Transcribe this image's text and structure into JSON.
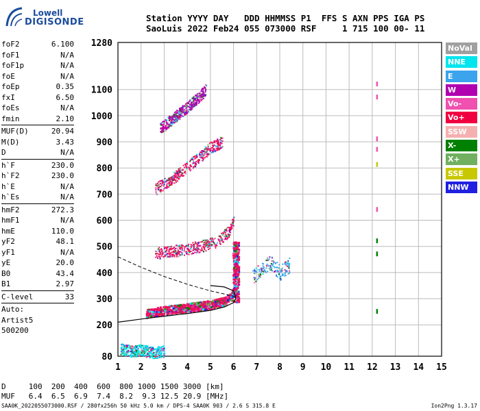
{
  "logo": {
    "line1": "Lowell",
    "line2": "DIGISONDE"
  },
  "header": {
    "line1": "Station YYYY DAY   DDD HHMMSS P1  FFS S AXN PPS IGA PS",
    "line2": "SaoLuis 2022 Feb24 055 073000 RSF     1 715 100 00- 11"
  },
  "params": {
    "group1": [
      {
        "label": "foF2",
        "value": "6.100"
      },
      {
        "label": "foF1",
        "value": "N/A"
      },
      {
        "label": "foF1p",
        "value": "N/A"
      },
      {
        "label": "foE",
        "value": "N/A"
      },
      {
        "label": "foEp",
        "value": "0.35"
      },
      {
        "label": "fxI",
        "value": "6.50"
      },
      {
        "label": "foEs",
        "value": "N/A"
      },
      {
        "label": "fmin",
        "value": "2.10"
      }
    ],
    "group2": [
      {
        "label": "MUF(D)",
        "value": "20.94"
      },
      {
        "label": "M(D)",
        "value": "3.43"
      },
      {
        "label": "D",
        "value": "N/A"
      }
    ],
    "group3": [
      {
        "label": "h`F",
        "value": "230.0"
      },
      {
        "label": "h`F2",
        "value": "230.0"
      },
      {
        "label": "h`E",
        "value": "N/A"
      },
      {
        "label": "h`Es",
        "value": "N/A"
      }
    ],
    "group4": [
      {
        "label": "hmF2",
        "value": "272.3"
      },
      {
        "label": "hmF1",
        "value": "N/A"
      },
      {
        "label": "hmE",
        "value": "110.0"
      },
      {
        "label": "yF2",
        "value": "48.1"
      },
      {
        "label": "yF1",
        "value": "N/A"
      },
      {
        "label": "yE",
        "value": "20.0"
      },
      {
        "label": "B0",
        "value": "43.4"
      },
      {
        "label": "B1",
        "value": "2.97"
      }
    ],
    "group5": [
      {
        "label": "C-level",
        "value": "33"
      }
    ],
    "group6": [
      "Auto:",
      "Artist5",
      "500200"
    ]
  },
  "legend": [
    {
      "label": "NoVal",
      "color": "#a0a0a0"
    },
    {
      "label": "NNE",
      "color": "#00e5ee"
    },
    {
      "label": "E",
      "color": "#3ba4ec"
    },
    {
      "label": "W",
      "color": "#b000b0"
    },
    {
      "label": "Vo-",
      "color": "#f050b0"
    },
    {
      "label": "Vo+",
      "color": "#f00040"
    },
    {
      "label": "SSW",
      "color": "#f4b0b0"
    },
    {
      "label": "X-",
      "color": "#008000"
    },
    {
      "label": "X+",
      "color": "#70b060"
    },
    {
      "label": "SSE",
      "color": "#c8c800"
    },
    {
      "label": "NNW",
      "color": "#2020e0"
    }
  ],
  "muf_table": {
    "d_line": "D     100  200  400  600  800 1000 1500 3000 [km]",
    "muf_line": "MUF   6.4  6.5  6.9  7.4  8.2  9.3 12.5 20.9 [MHz]"
  },
  "footer": "SAA0K_2022055073000.RSF / 280fx256h 50 kHz 5.0 km / DPS-4 SAA0K 903 / 2.6 S 315.8 E",
  "version": "Ion2Png 1.3.17",
  "chart_data": {
    "type": "scatter",
    "xlabel": "",
    "ylabel": "",
    "xlim": [
      1,
      15
    ],
    "ylim": [
      80,
      1280
    ],
    "x_ticks": [
      1,
      2,
      3,
      4,
      5,
      6,
      7,
      8,
      9,
      10,
      11,
      12,
      13,
      14,
      15
    ],
    "y_ticks": [
      80,
      200,
      300,
      400,
      500,
      600,
      700,
      800,
      900,
      1000,
      1100,
      1280
    ],
    "grid": true,
    "traces": [
      {
        "name": "F-trace",
        "color": "#ee1060",
        "points": [
          [
            2.2,
            245
          ],
          [
            3.0,
            258
          ],
          [
            4.0,
            268
          ],
          [
            5.0,
            280
          ],
          [
            5.6,
            292
          ],
          [
            5.9,
            310
          ],
          [
            6.0,
            360
          ],
          [
            6.1,
            450
          ],
          [
            6.15,
            520
          ]
        ]
      },
      {
        "name": "2F-trace",
        "color": "#ee1060",
        "points": [
          [
            2.6,
            475
          ],
          [
            3.5,
            485
          ],
          [
            4.5,
            500
          ],
          [
            5.3,
            520
          ],
          [
            5.8,
            560
          ],
          [
            6.0,
            600
          ]
        ]
      },
      {
        "name": "3F-trace",
        "color": "#ee1060",
        "points": [
          [
            2.6,
            720
          ],
          [
            3.5,
            770
          ],
          [
            4.2,
            820
          ],
          [
            5.0,
            880
          ],
          [
            5.5,
            900
          ]
        ]
      },
      {
        "name": "4F-trace",
        "color": "#b000b0",
        "points": [
          [
            2.8,
            950
          ],
          [
            3.5,
            1000
          ],
          [
            4.2,
            1050
          ],
          [
            4.8,
            1100
          ]
        ]
      },
      {
        "name": "oblique-cluster",
        "color": "#3ba4ec",
        "points": [
          [
            6.8,
            380
          ],
          [
            7.2,
            420
          ],
          [
            7.6,
            440
          ],
          [
            8.0,
            400
          ],
          [
            8.4,
            430
          ]
        ]
      },
      {
        "name": "low-echoes",
        "color": "#00e5ee",
        "points": [
          [
            1.1,
            110
          ],
          [
            1.6,
            100
          ],
          [
            2.0,
            105
          ],
          [
            2.5,
            95
          ],
          [
            3.0,
            100
          ]
        ]
      }
    ],
    "profile_solid": [
      [
        1.0,
        210
      ],
      [
        2.0,
        222
      ],
      [
        3.0,
        233
      ],
      [
        4.0,
        243
      ],
      [
        5.0,
        255
      ],
      [
        5.6,
        268
      ],
      [
        6.0,
        285
      ],
      [
        6.1,
        300
      ],
      [
        6.0,
        330
      ],
      [
        5.6,
        345
      ],
      [
        5.0,
        350
      ]
    ],
    "profile_dashed": [
      [
        1.0,
        460
      ],
      [
        2.0,
        420
      ],
      [
        3.0,
        385
      ],
      [
        4.0,
        355
      ],
      [
        5.0,
        330
      ],
      [
        6.0,
        310
      ],
      [
        6.1,
        300
      ]
    ],
    "side_markers": [
      {
        "x": 12.2,
        "y": 1120,
        "color": "#f050b0"
      },
      {
        "x": 12.2,
        "y": 1070,
        "color": "#f050b0"
      },
      {
        "x": 12.2,
        "y": 910,
        "color": "#f050b0"
      },
      {
        "x": 12.2,
        "y": 870,
        "color": "#f050b0"
      },
      {
        "x": 12.2,
        "y": 812,
        "color": "#c8c800"
      },
      {
        "x": 12.2,
        "y": 640,
        "color": "#f050b0"
      },
      {
        "x": 12.2,
        "y": 520,
        "color": "#008000"
      },
      {
        "x": 12.2,
        "y": 470,
        "color": "#008000"
      },
      {
        "x": 12.2,
        "y": 250,
        "color": "#008000"
      }
    ]
  }
}
